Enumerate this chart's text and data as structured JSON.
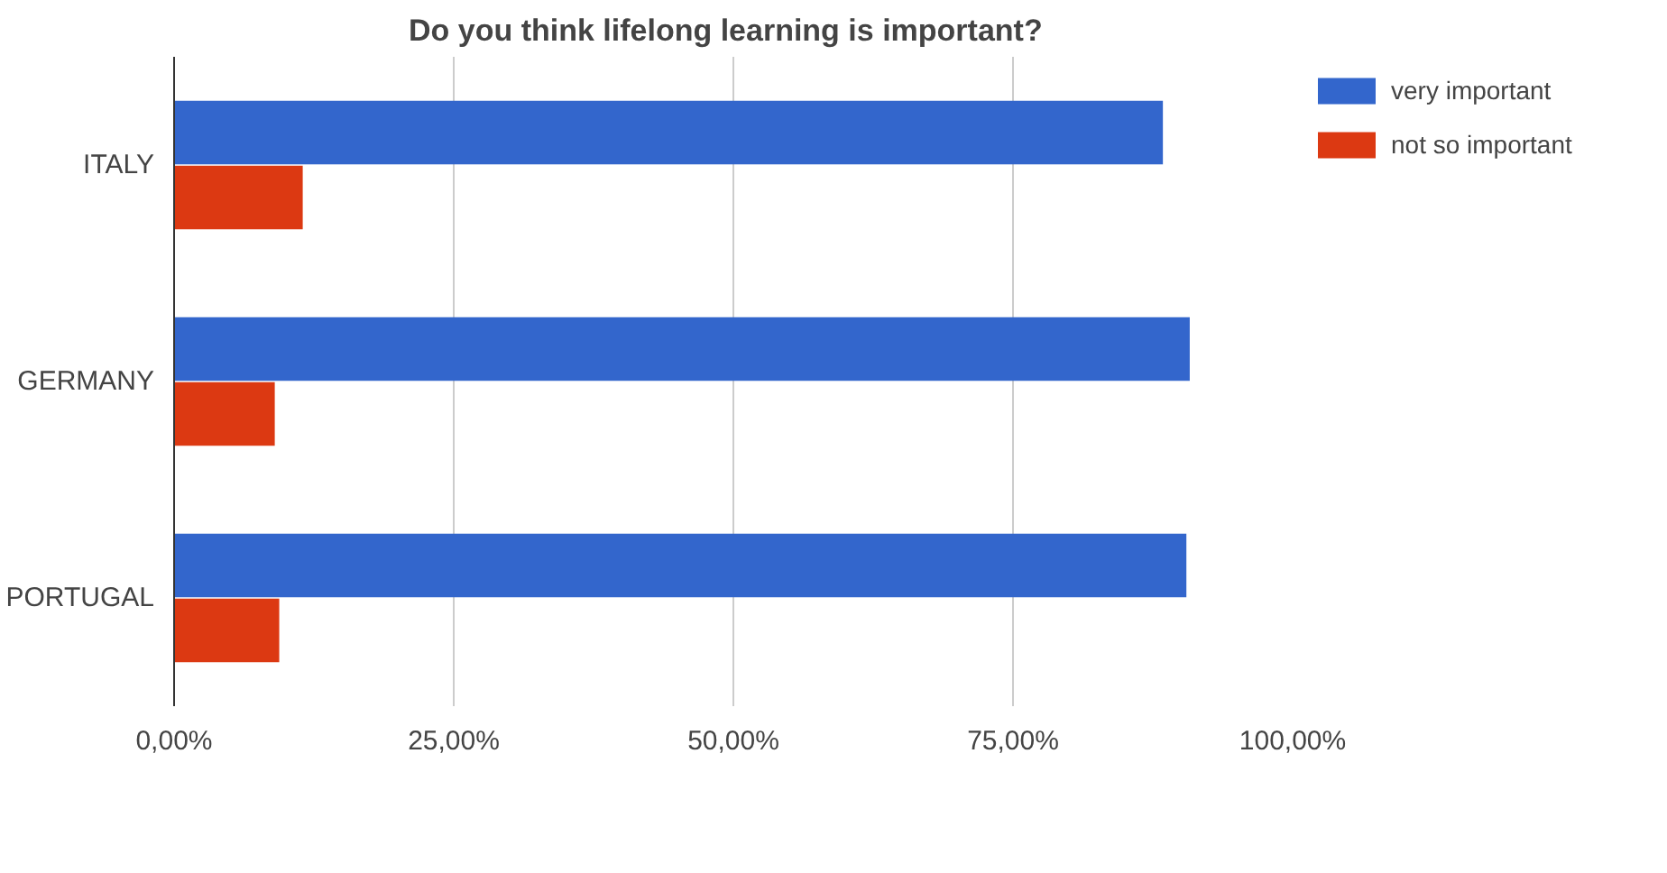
{
  "chart_data": {
    "type": "bar",
    "orientation": "horizontal",
    "title": "Do you think lifelong learning is important?",
    "categories": [
      "ITALY",
      "GERMANY",
      "PORTUGAL"
    ],
    "series": [
      {
        "name": "very important",
        "color": "#3366cc",
        "values": [
          88.4,
          90.8,
          90.5
        ]
      },
      {
        "name": "not so important",
        "color": "#dc3912",
        "values": [
          11.5,
          9.0,
          9.4
        ]
      }
    ],
    "xlim": [
      0,
      100
    ],
    "xticks": [
      {
        "value": 0,
        "label": "0,00%"
      },
      {
        "value": 25,
        "label": "25,00%"
      },
      {
        "value": 50,
        "label": "50,00%"
      },
      {
        "value": 75,
        "label": "75,00%"
      },
      {
        "value": 100,
        "label": "100,00%"
      }
    ],
    "grid": "x",
    "legend": "right"
  }
}
